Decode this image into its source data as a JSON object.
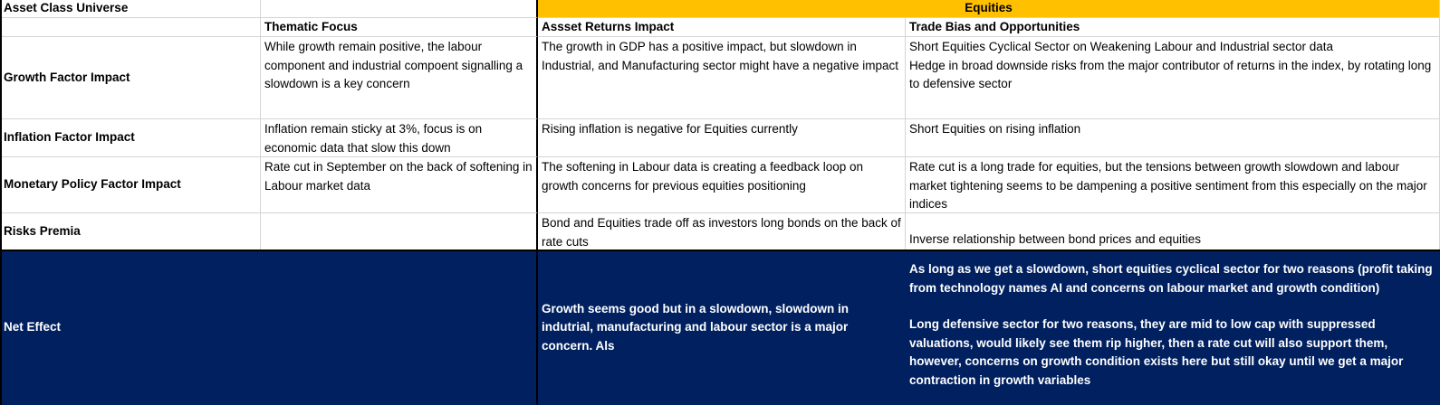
{
  "header": {
    "title": "Asset Class Universe",
    "group_label": "Equities"
  },
  "columns": {
    "thematic": "Thematic Focus",
    "returns": "Assset Returns Impact",
    "trade": "Trade Bias and Opportunities"
  },
  "rows": [
    {
      "label": "Growth Factor Impact",
      "thematic": "While growth remain positive, the labour component and industrial compoent signalling a slowdown is a key concern",
      "returns": "The growth in GDP has a positive impact, but slowdown in Industrial, and Manufacturing sector might have a negative impact",
      "trade": "Short Equities Cyclical Sector on Weakening Labour and Industrial sector data\nHedge in broad downside risks from the major contributor of returns in the index, by rotating long to defensive sector"
    },
    {
      "label": "Inflation Factor Impact",
      "thematic": "Inflation remain sticky at 3%, focus is on economic data that slow this down",
      "returns": "Rising inflation is negative for Equities currently",
      "trade": "Short Equities on rising inflation"
    },
    {
      "label": "Monetary Policy Factor Impact",
      "thematic": "Rate cut in September on the back of softening in Labour market data",
      "returns": "The softening in Labour data is creating a feedback loop on growth concerns for previous equities positioning",
      "trade": "Rate cut is a long trade for equities, but the tensions between growth slowdown and labour market tightening seems to be dampening a positive sentiment from this especially on the major indices"
    },
    {
      "label": "Risks Premia",
      "thematic": "",
      "returns": "Bond and Equities trade off as investors long bonds on the back of rate cuts",
      "trade": "Inverse relationship between bond prices and equities"
    }
  ],
  "net_effect": {
    "label": "Net Effect",
    "returns": "Growth seems good but in a slowdown, slowdown in indutrial, manufacturing and labour sector is a major concern. Als",
    "trade_p1": "As long as we get a slowdown, short equities cyclical sector for two reasons (profit taking from technology names AI and concerns on labour market and growth condition)",
    "trade_p2": "Long defensive sector for two reasons, they are mid to low cap with suppressed valuations, would likely see them rip higher, then a rate cut will also support them, however, concerns on growth condition exists here but still okay until we get a major contraction in growth variables"
  },
  "colors": {
    "gold": "#ffc000",
    "navy": "#002060",
    "grid": "#d4d4d4"
  }
}
